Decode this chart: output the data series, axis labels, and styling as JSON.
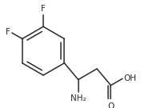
{
  "background_color": "#ffffff",
  "bond_color": "#2a2a2a",
  "text_color": "#2a2a2a",
  "figsize": [
    2.07,
    1.35
  ],
  "dpi": 100,
  "font_size": 7.5,
  "label_F1": "F",
  "label_F2": "F",
  "label_NH2": "NH₂",
  "label_O": "O",
  "label_OH": "OH",
  "lw": 1.1
}
